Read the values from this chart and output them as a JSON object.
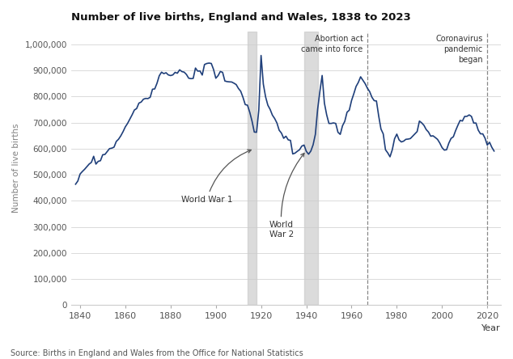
{
  "title": "Number of live births, England and Wales, 1838 to 2023",
  "ylabel": "Number of live births",
  "xlabel": "Year",
  "source": "Source: Births in England and Wales from the Office for National Statistics",
  "line_color": "#1f3f7a",
  "ylim": [
    0,
    1050000
  ],
  "xlim": [
    1836,
    2026
  ],
  "yticks": [
    0,
    100000,
    200000,
    300000,
    400000,
    500000,
    600000,
    700000,
    800000,
    900000,
    1000000
  ],
  "ytick_labels": [
    "0",
    "100,000",
    "200,000",
    "300,000",
    "400,000",
    "500,000",
    "600,000",
    "700,000",
    "800,000",
    "900,000",
    "1,000,000"
  ],
  "xticks": [
    1840,
    1860,
    1880,
    1900,
    1920,
    1940,
    1960,
    1980,
    2000,
    2020
  ],
  "ww1_shade": [
    1914,
    1918
  ],
  "ww2_shade": [
    1939,
    1945
  ],
  "abortion_act_year": 1967,
  "covid_year": 2020,
  "years": [
    1838,
    1839,
    1840,
    1841,
    1842,
    1843,
    1844,
    1845,
    1846,
    1847,
    1848,
    1849,
    1850,
    1851,
    1852,
    1853,
    1854,
    1855,
    1856,
    1857,
    1858,
    1859,
    1860,
    1861,
    1862,
    1863,
    1864,
    1865,
    1866,
    1867,
    1868,
    1869,
    1870,
    1871,
    1872,
    1873,
    1874,
    1875,
    1876,
    1877,
    1878,
    1879,
    1880,
    1881,
    1882,
    1883,
    1884,
    1885,
    1886,
    1887,
    1888,
    1889,
    1890,
    1891,
    1892,
    1893,
    1894,
    1895,
    1896,
    1897,
    1898,
    1899,
    1900,
    1901,
    1902,
    1903,
    1904,
    1905,
    1906,
    1907,
    1908,
    1909,
    1910,
    1911,
    1912,
    1913,
    1914,
    1915,
    1916,
    1917,
    1918,
    1919,
    1920,
    1921,
    1922,
    1923,
    1924,
    1925,
    1926,
    1927,
    1928,
    1929,
    1930,
    1931,
    1932,
    1933,
    1934,
    1935,
    1936,
    1937,
    1938,
    1939,
    1940,
    1941,
    1942,
    1943,
    1944,
    1945,
    1946,
    1947,
    1948,
    1949,
    1950,
    1951,
    1952,
    1953,
    1954,
    1955,
    1956,
    1957,
    1958,
    1959,
    1960,
    1961,
    1962,
    1963,
    1964,
    1965,
    1966,
    1967,
    1968,
    1969,
    1970,
    1971,
    1972,
    1973,
    1974,
    1975,
    1976,
    1977,
    1978,
    1979,
    1980,
    1981,
    1982,
    1983,
    1984,
    1985,
    1986,
    1987,
    1988,
    1989,
    1990,
    1991,
    1992,
    1993,
    1994,
    1995,
    1996,
    1997,
    1998,
    1999,
    2000,
    2001,
    2002,
    2003,
    2004,
    2005,
    2006,
    2007,
    2008,
    2009,
    2010,
    2011,
    2012,
    2013,
    2014,
    2015,
    2016,
    2017,
    2018,
    2019,
    2020,
    2021,
    2022,
    2023
  ],
  "births": [
    463787,
    475979,
    502917,
    512559,
    521108,
    531004,
    541063,
    547619,
    570948,
    541020,
    551466,
    554007,
    576767,
    578135,
    589413,
    600336,
    602136,
    606004,
    627882,
    636507,
    649518,
    665523,
    684000,
    697292,
    713566,
    730195,
    748567,
    754162,
    774964,
    779087,
    790005,
    793028,
    792404,
    797529,
    828277,
    829500,
    851264,
    880074,
    893697,
    888201,
    891544,
    883280,
    880680,
    883290,
    893014,
    889695,
    902814,
    896038,
    893773,
    885048,
    870685,
    868878,
    869761,
    909586,
    897701,
    898378,
    882695,
    923143,
    927000,
    928593,
    927062,
    904000,
    870527,
    880458,
    896437,
    893000,
    859900,
    857481,
    856543,
    856047,
    851509,
    846200,
    831200,
    820534,
    797262,
    769363,
    767000,
    740000,
    706000,
    664000,
    663000,
    748000,
    957782,
    848000,
    799000,
    767000,
    751000,
    729000,
    716000,
    699000,
    671000,
    660000,
    640000,
    648000,
    634000,
    632000,
    580000,
    583000,
    590000,
    596000,
    610000,
    614000,
    590000,
    579000,
    591000,
    615000,
    655000,
    751000,
    820000,
    881000,
    775000,
    730000,
    697000,
    697000,
    699000,
    697000,
    663000,
    655000,
    688000,
    705000,
    740000,
    748000,
    785000,
    811000,
    839000,
    854605,
    875972,
    862725,
    849823,
    832164,
    819272,
    797538,
    784486,
    783155,
    725440,
    675553,
    657000,
    596000,
    584000,
    569000,
    596000,
    638000,
    656000,
    634000,
    626000,
    629000,
    636000,
    637000,
    639000,
    648000,
    657000,
    666000,
    706140,
    699217,
    689656,
    673467,
    664000,
    648138,
    649589,
    643095,
    635901,
    621872,
    604441,
    594634,
    596122,
    621469,
    639721,
    645835,
    669601,
    690013,
    708711,
    706248,
    723913,
    724241,
    729674,
    723913,
    698512,
    698512,
    671255,
    657076,
    657076,
    640370,
    613936,
    624828,
    605479,
    591072
  ]
}
